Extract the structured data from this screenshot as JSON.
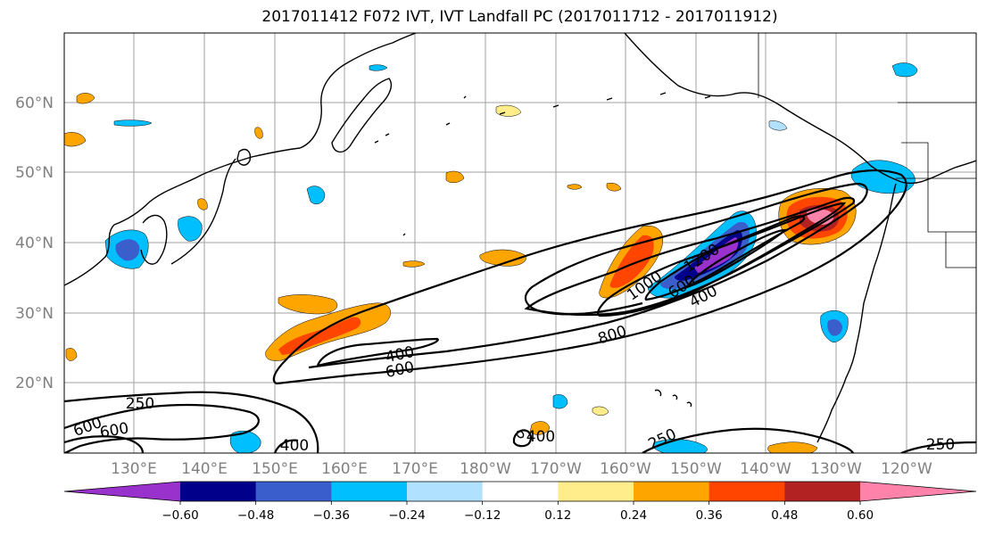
{
  "title": "2017011412 F072 IVT, IVT Landfall PC (2017011712 - 2017011912)",
  "map": {
    "lat_labels": [
      "60°N",
      "50°N",
      "40°N",
      "30°N",
      "20°N"
    ],
    "lon_labels": [
      "130°E",
      "140°E",
      "150°E",
      "160°E",
      "170°E",
      "180°W",
      "170°W",
      "160°W",
      "150°W",
      "140°W",
      "130°W",
      "120°W"
    ],
    "contour_labels": [
      "250",
      "600",
      "400",
      "800",
      "1000",
      "1200",
      "600",
      "400",
      "250",
      "600",
      "400",
      "400",
      "250",
      "600"
    ]
  },
  "colorbar": {
    "colors": [
      "#9932cc",
      "#00008b",
      "#3a5fcd",
      "#00bfff",
      "#b0e2ff",
      "#ffffff",
      "#ffec8b",
      "#ffa500",
      "#ff4500",
      "#b22222",
      "#ff82ab"
    ],
    "tick_labels": [
      "−0.60",
      "−0.48",
      "−0.36",
      "−0.24",
      "−0.12",
      "0.12",
      "0.24",
      "0.36",
      "0.48",
      "0.60"
    ]
  }
}
